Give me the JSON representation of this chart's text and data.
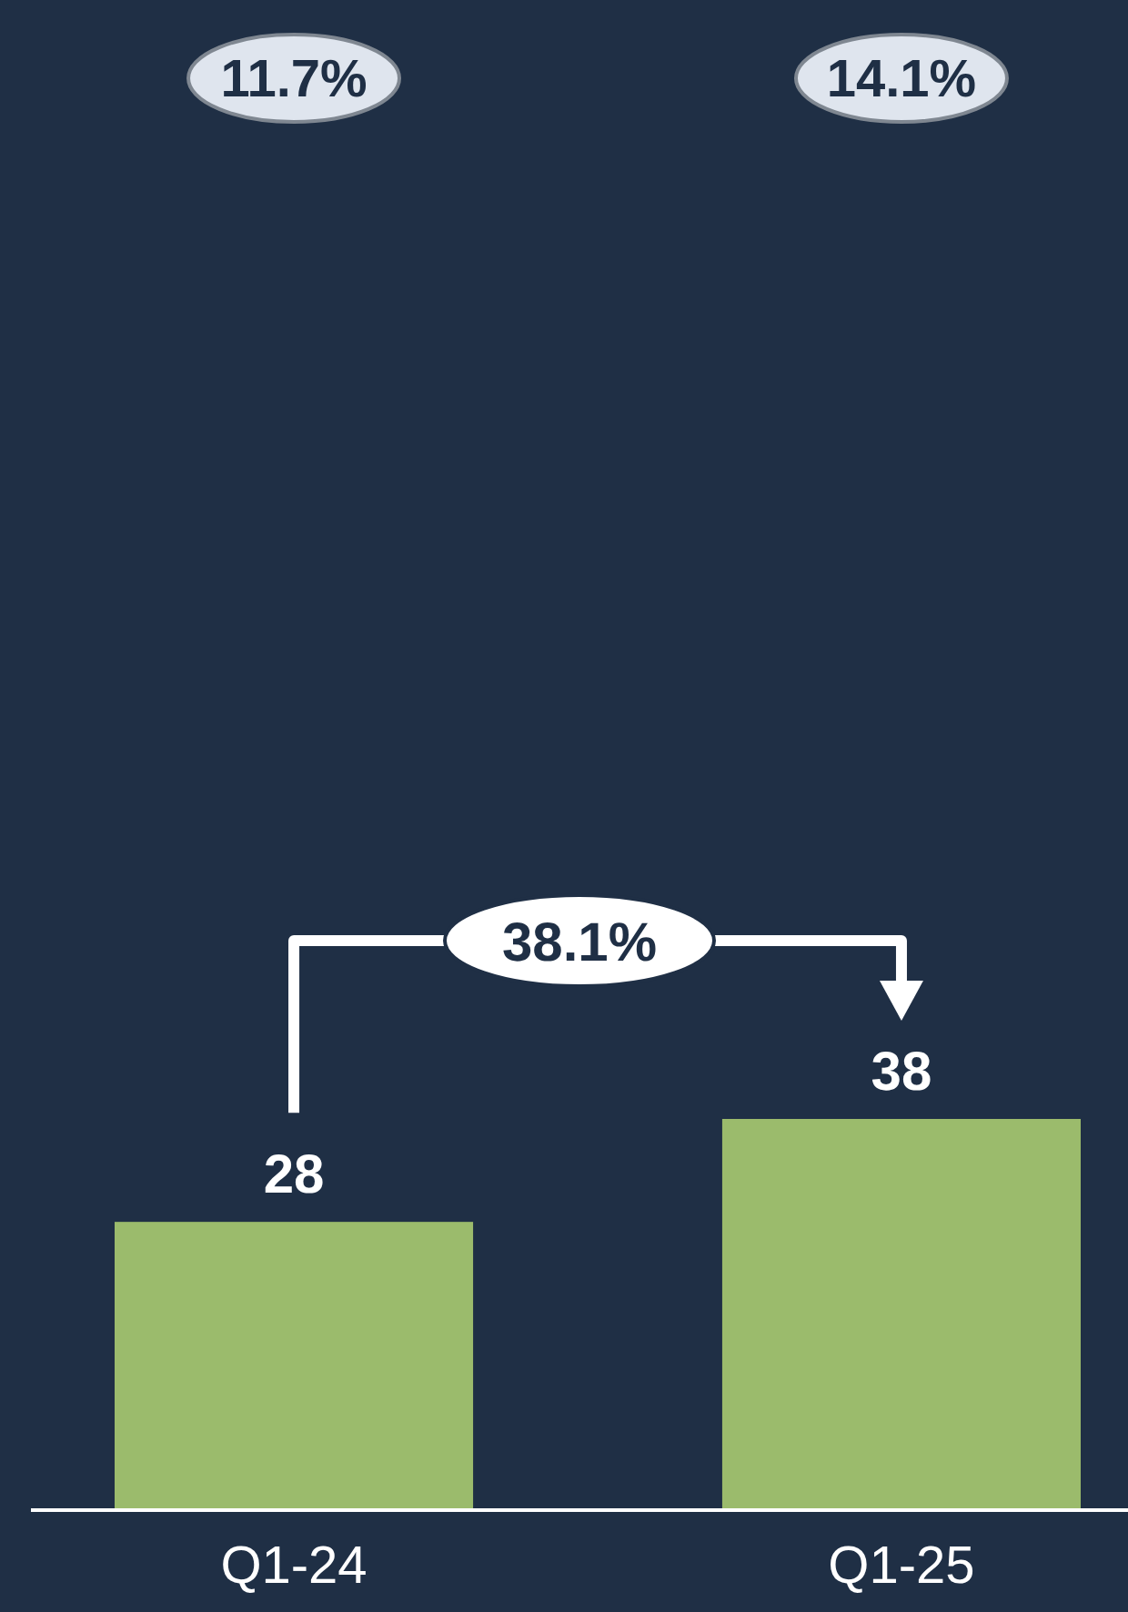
{
  "chart_data": {
    "type": "bar",
    "categories": [
      "Q1-24",
      "Q1-25"
    ],
    "values": [
      28,
      38
    ],
    "color": "#9bbb6c",
    "data_labels": true,
    "annotations": [
      "11.7%",
      "14.1%",
      "38.1%"
    ]
  }
}
